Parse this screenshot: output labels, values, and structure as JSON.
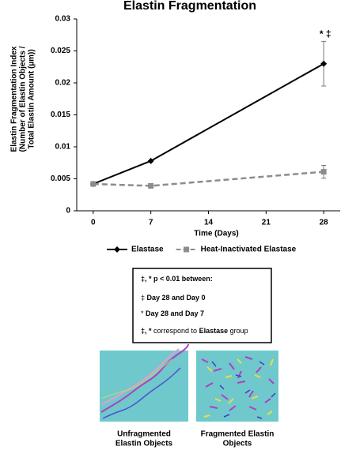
{
  "chart_data": {
    "type": "line",
    "title": "Elastin Fragmentation",
    "y_label": [
      "Elastin Fragmentation Index",
      "(Number of Elastin Objects /",
      "Total Elastin Amount (µm))"
    ],
    "x_label": "Time (Days)",
    "x": [
      0,
      7,
      28
    ],
    "xlim": [
      -2,
      30
    ],
    "xticks": [
      0,
      7,
      14,
      21,
      28
    ],
    "ylim": [
      0,
      0.03
    ],
    "yticks": [
      0,
      0.005,
      0.01,
      0.015,
      0.02,
      0.025,
      0.03
    ],
    "series": [
      {
        "name": "Elastase",
        "color": "#000000",
        "marker": "diamond",
        "dash": false,
        "values": [
          0.0042,
          0.0078,
          0.023
        ],
        "errors": [
          null,
          null,
          0.0035
        ]
      },
      {
        "name": "Heat-Inactivated Elastase",
        "color": "#8c8c8c",
        "marker": "square",
        "dash": true,
        "values": [
          0.0042,
          0.0039,
          0.0061
        ],
        "errors": [
          null,
          null,
          0.001
        ]
      }
    ],
    "annotation": "*  ‡"
  },
  "significance_box": {
    "lines": [
      [
        {
          "text": "‡, *",
          "bold": true
        },
        {
          "text": " p < 0.01 between:",
          "bold": true
        }
      ],
      [
        {
          "text": "‡",
          "bold": false
        },
        {
          "text": " Day 28 and Day 0",
          "bold": true
        }
      ],
      [
        {
          "text": "*",
          "bold": false
        },
        {
          "text": " Day 28 and Day 7",
          "bold": true
        }
      ],
      [
        {
          "text": "‡, *",
          "bold": true
        },
        {
          "text": " correspond to ",
          "bold": false
        },
        {
          "text": "Elastase",
          "bold": true
        },
        {
          "text": " group",
          "bold": false
        }
      ]
    ]
  },
  "images": [
    {
      "caption": [
        "Unfragmented",
        "Elastin Objects"
      ]
    },
    {
      "caption": [
        "Fragmented Elastin",
        "Objects"
      ]
    }
  ]
}
